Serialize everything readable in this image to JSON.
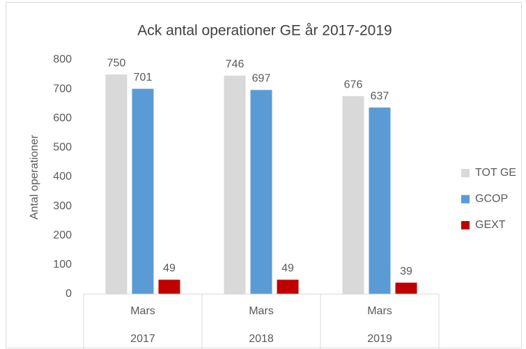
{
  "chart_data": {
    "type": "bar",
    "title": "Ack antal operationer GE år 2017-2019",
    "y_label": "Antal operationer",
    "categories": [
      "Mars",
      "Mars",
      "Mars"
    ],
    "category_groups": [
      "2017",
      "2018",
      "2019"
    ],
    "series": [
      {
        "name": "TOT GE",
        "color": "#d9d9d9",
        "values": [
          750,
          746,
          676
        ]
      },
      {
        "name": "GCOP",
        "color": "#5b9bd5",
        "values": [
          701,
          697,
          637
        ]
      },
      {
        "name": "GEXT",
        "color": "#c00000",
        "values": [
          49,
          49,
          39
        ]
      }
    ],
    "ylim": [
      0,
      800
    ],
    "yticks": [
      0,
      100,
      200,
      300,
      400,
      500,
      600,
      700,
      800
    ],
    "grid": false,
    "legend": "right"
  }
}
